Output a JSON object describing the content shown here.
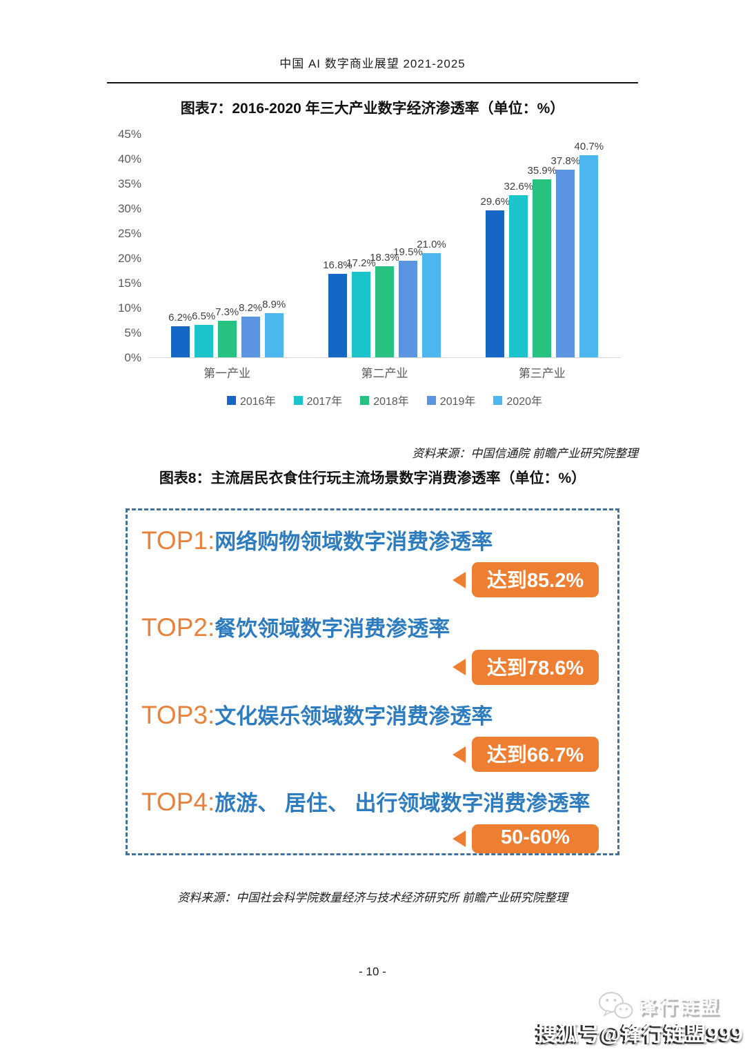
{
  "page": {
    "header": "中国 AI 数字商业展望 2021-2025",
    "page_number": "- 10 -"
  },
  "figure7": {
    "title": "图表7：2016-2020 年三大产业数字经济渗透率（单位：%）",
    "source": "资料来源：中国信通院 前瞻产业研究院整理"
  },
  "chart_data": {
    "type": "bar",
    "title": "图表7：2016-2020 年三大产业数字经济渗透率（单位：%）",
    "categories": [
      "第一产业",
      "第二产业",
      "第三产业"
    ],
    "series": [
      {
        "name": "2016年",
        "color": "#1666c5",
        "values": [
          6.2,
          16.8,
          29.6
        ]
      },
      {
        "name": "2017年",
        "color": "#1bc3ca",
        "values": [
          6.5,
          17.2,
          32.6
        ]
      },
      {
        "name": "2018年",
        "color": "#27c180",
        "values": [
          7.3,
          18.3,
          35.9
        ]
      },
      {
        "name": "2019年",
        "color": "#5b94e0",
        "values": [
          8.2,
          19.5,
          37.8
        ]
      },
      {
        "name": "2020年",
        "color": "#4cb6ee",
        "values": [
          8.9,
          21.0,
          40.7
        ]
      }
    ],
    "ylim": [
      0,
      45
    ],
    "ytick_step": 5,
    "ytick_labels": [
      "0%",
      "5%",
      "10%",
      "15%",
      "20%",
      "25%",
      "30%",
      "35%",
      "40%",
      "45%"
    ],
    "data_label_format": "{value}%",
    "grid": false,
    "legend_position": "bottom"
  },
  "figure8": {
    "title": "图表8：主流居民衣食住行玩主流场景数字消费渗透率（单位：%）",
    "source": "资料来源：中国社会科学院数量经济与技术经济研究所 前瞻产业研究院整理",
    "items": [
      {
        "rank": "TOP1:",
        "label": "网络购物领域数字消费渗透率",
        "badge": "达到85.2%"
      },
      {
        "rank": "TOP2:",
        "label": "餐饮领域数字消费渗透率",
        "badge": "达到78.6%"
      },
      {
        "rank": "TOP3:",
        "label": "文化娱乐领域数字消费渗透率",
        "badge": "达到66.7%"
      },
      {
        "rank": "TOP4:",
        "label": "旅游、 居住、 出行领域数字消费渗透率",
        "badge": "50-60%"
      }
    ],
    "colors": {
      "rank_orange": "#e8823a",
      "label_blue": "#2d7cc0",
      "badge_orange": "#ee7e32",
      "border_blue": "#41719c"
    }
  },
  "watermark": {
    "icon": "wechat-icon",
    "brand": "锋行链盟",
    "account": "搜狐号@锋行链盟999"
  }
}
